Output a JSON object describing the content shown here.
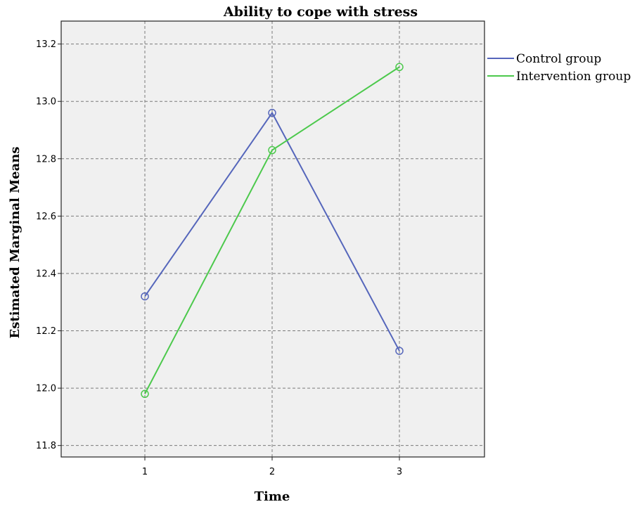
{
  "chart_data": {
    "type": "line",
    "title": "Ability to cope with stress",
    "xlabel": "Time",
    "ylabel": "Estimated Marginal Means",
    "categories": [
      "1",
      "2",
      "3"
    ],
    "ylim": [
      11.76,
      13.28
    ],
    "yticks": [
      11.8,
      12.0,
      12.2,
      12.4,
      12.6,
      12.8,
      13.0,
      13.2
    ],
    "ytick_labels": [
      "11.8",
      "12.0",
      "12.2",
      "12.4",
      "12.6",
      "12.8",
      "13.0",
      "13.2"
    ],
    "grid": true,
    "legend_position": "right",
    "marker": "open-circle",
    "series": [
      {
        "name": "Control group",
        "values": [
          12.32,
          12.96,
          12.13
        ],
        "color": "#5566bb"
      },
      {
        "name": "Intervention group",
        "values": [
          11.98,
          12.83,
          13.12
        ],
        "color": "#4cc94c"
      }
    ],
    "plot_background": "#f0f0f0",
    "grid_color": "#7a7a7a"
  }
}
